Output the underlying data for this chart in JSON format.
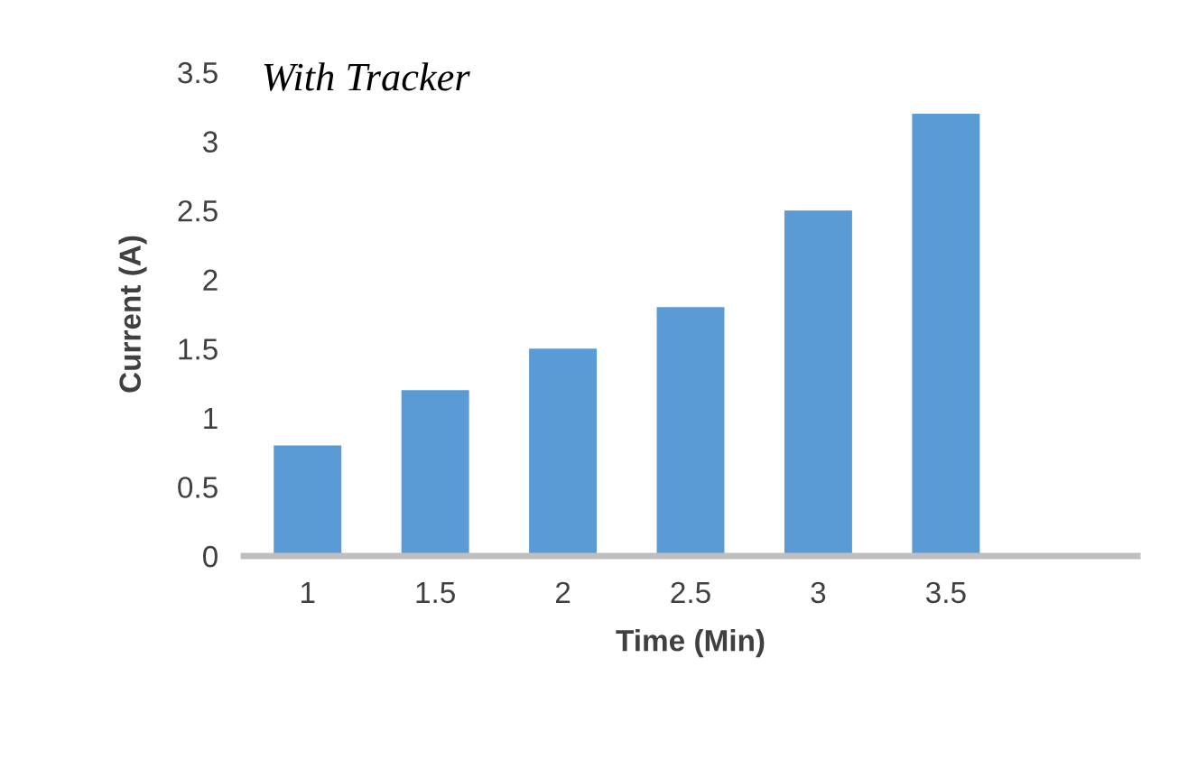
{
  "chart_data": {
    "type": "bar",
    "title": "With Tracker",
    "xlabel": "Time (Min)",
    "ylabel": "Current (A)",
    "categories": [
      "1",
      "1.5",
      "2",
      "2.5",
      "3",
      "3.5",
      null
    ],
    "values": [
      0.8,
      1.2,
      1.5,
      1.8,
      2.5,
      3.2,
      null
    ],
    "color": "#5b9bd5",
    "ylim": [
      0,
      3.5
    ],
    "yticks": [
      0,
      0.5,
      1,
      1.5,
      2,
      2.5,
      3,
      3.5
    ],
    "grid": false,
    "legend": false
  }
}
